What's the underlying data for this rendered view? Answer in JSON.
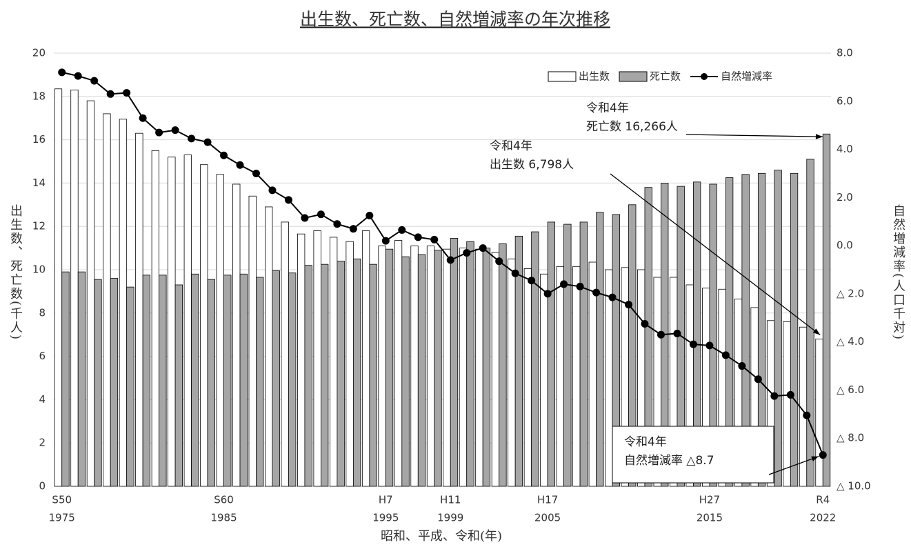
{
  "chart_data": {
    "type": "bar",
    "title": "出生数、死亡数、自然増減率の年次推移",
    "x_label": "昭和、平成、令和(年)",
    "y_label": "出生数、死亡数(千人)",
    "y2_label": "自然増減率(人口千対)",
    "categories": [
      "S50",
      null,
      null,
      null,
      null,
      null,
      null,
      null,
      null,
      null,
      "S60",
      null,
      null,
      null,
      null,
      null,
      null,
      null,
      null,
      null,
      "H7",
      null,
      null,
      null,
      "H11",
      null,
      null,
      null,
      null,
      null,
      "H17",
      null,
      null,
      null,
      null,
      null,
      null,
      null,
      null,
      null,
      "H27",
      null,
      null,
      null,
      null,
      null,
      null,
      "R4"
    ],
    "category_years": [
      "1975",
      null,
      null,
      null,
      null,
      null,
      null,
      null,
      null,
      null,
      "1985",
      null,
      null,
      null,
      null,
      null,
      null,
      null,
      null,
      null,
      "1995",
      null,
      null,
      null,
      "1999",
      null,
      null,
      null,
      null,
      null,
      "2005",
      null,
      null,
      null,
      null,
      null,
      null,
      null,
      null,
      null,
      "2015",
      null,
      null,
      null,
      null,
      null,
      null,
      "2022"
    ],
    "series": [
      {
        "name": "出生数",
        "type": "bar",
        "color": "#ffffff",
        "values": [
          18.35,
          18.3,
          17.8,
          17.2,
          16.95,
          16.3,
          15.5,
          15.2,
          15.3,
          14.85,
          14.4,
          13.95,
          13.4,
          12.9,
          12.2,
          11.65,
          11.8,
          11.5,
          11.3,
          11.8,
          11.1,
          11.35,
          11.1,
          11.1,
          10.95,
          11.0,
          10.95,
          10.8,
          10.5,
          10.05,
          9.8,
          10.15,
          10.15,
          10.35,
          10.0,
          10.1,
          10.0,
          9.65,
          9.65,
          9.3,
          9.15,
          9.1,
          8.65,
          8.25,
          7.65,
          7.6,
          7.35,
          6.798
        ]
      },
      {
        "name": "死亡数",
        "type": "bar",
        "color": "#a6a6a6",
        "values": [
          9.9,
          9.9,
          9.55,
          9.6,
          9.2,
          9.75,
          9.75,
          9.3,
          9.8,
          9.55,
          9.75,
          9.8,
          9.65,
          9.95,
          9.85,
          10.2,
          10.25,
          10.4,
          10.5,
          10.25,
          10.95,
          10.6,
          10.7,
          10.9,
          11.45,
          11.3,
          11.0,
          11.2,
          11.55,
          11.75,
          12.2,
          12.1,
          12.2,
          12.65,
          12.55,
          13.0,
          13.8,
          14.0,
          13.85,
          14.05,
          13.95,
          14.25,
          14.4,
          14.45,
          14.6,
          14.45,
          15.1,
          16.266
        ]
      },
      {
        "name": "自然増減率",
        "type": "line",
        "axis": "y2",
        "color": "#000000",
        "values": [
          7.2,
          7.05,
          6.85,
          6.3,
          6.35,
          5.3,
          4.7,
          4.8,
          4.45,
          4.3,
          3.75,
          3.35,
          3.0,
          2.3,
          1.9,
          1.15,
          1.3,
          0.9,
          0.7,
          1.25,
          0.2,
          0.65,
          0.35,
          0.25,
          -0.6,
          -0.3,
          -0.1,
          -0.65,
          -1.15,
          -1.45,
          -2.0,
          -1.6,
          -1.7,
          -1.95,
          -2.15,
          -2.45,
          -3.25,
          -3.7,
          -3.65,
          -4.1,
          -4.15,
          -4.55,
          -5.0,
          -5.55,
          -6.25,
          -6.2,
          -7.05,
          -8.7
        ]
      }
    ],
    "ylim": [
      0,
      20
    ],
    "yticks": [
      0,
      2,
      4,
      6,
      8,
      10,
      12,
      14,
      16,
      18,
      20
    ],
    "y2lim": [
      -10,
      8
    ],
    "y2ticks": [
      {
        "value": 8,
        "label": "8.0"
      },
      {
        "value": 6,
        "label": "6.0"
      },
      {
        "value": 4,
        "label": "4.0"
      },
      {
        "value": 2,
        "label": "2.0"
      },
      {
        "value": 0,
        "label": "0.0"
      },
      {
        "value": -2,
        "label": "△ 2.0"
      },
      {
        "value": -4,
        "label": "△ 4.0"
      },
      {
        "value": -6,
        "label": "△ 6.0"
      },
      {
        "value": -8,
        "label": "△ 8.0"
      },
      {
        "value": -10,
        "label": "△ 10.0"
      }
    ],
    "grid": true,
    "legend": "top-right",
    "annotations": [
      {
        "lines": [
          "令和4年",
          "死亡数 16,266人"
        ]
      },
      {
        "lines": [
          "令和4年",
          "出生数 6,798人"
        ]
      },
      {
        "lines": [
          "令和4年",
          "自然増減率 △8.7"
        ]
      }
    ]
  }
}
